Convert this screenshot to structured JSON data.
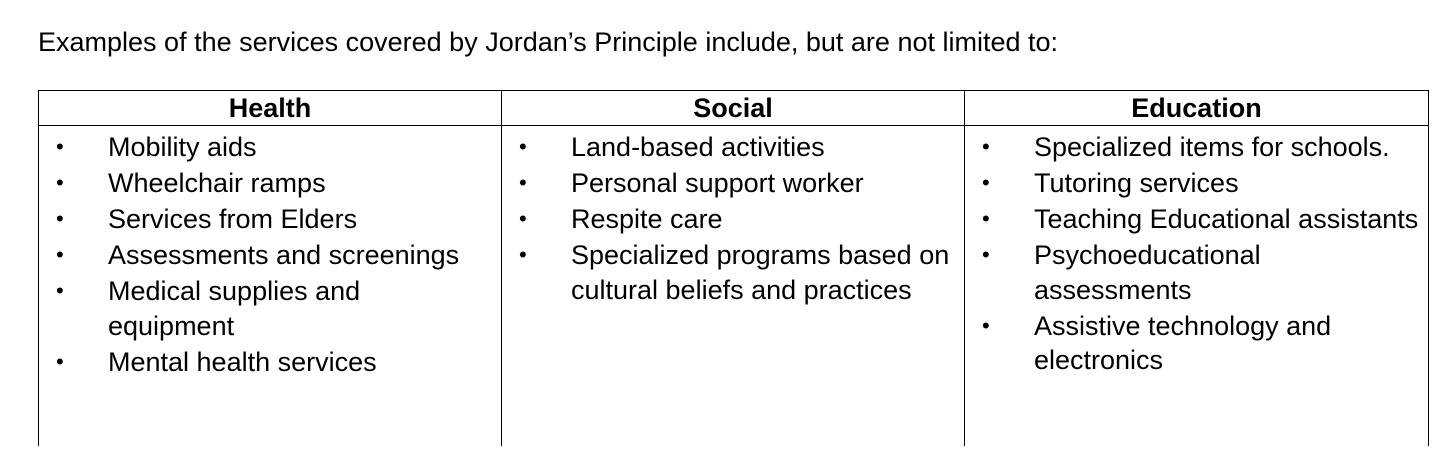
{
  "intro": "Examples of the services covered by Jordan’s Principle include, but are not limited to:",
  "columns": [
    {
      "header": "Health",
      "items": [
        "Mobility aids",
        "Wheelchair ramps",
        "Services from Elders",
        "Assessments and screenings",
        "Medical supplies and equipment",
        "Mental health services"
      ]
    },
    {
      "header": "Social",
      "items": [
        "Land-based activities",
        "Personal support worker",
        "Respite care",
        "Specialized programs based on cultural beliefs and practices"
      ]
    },
    {
      "header": "Education",
      "items": [
        "Specialized items for schools.",
        "Tutoring services",
        "Teaching Educational assistants",
        "Psychoeducational assessments",
        "Assistive technology and electronics"
      ]
    }
  ],
  "bullet_glyph": "•"
}
